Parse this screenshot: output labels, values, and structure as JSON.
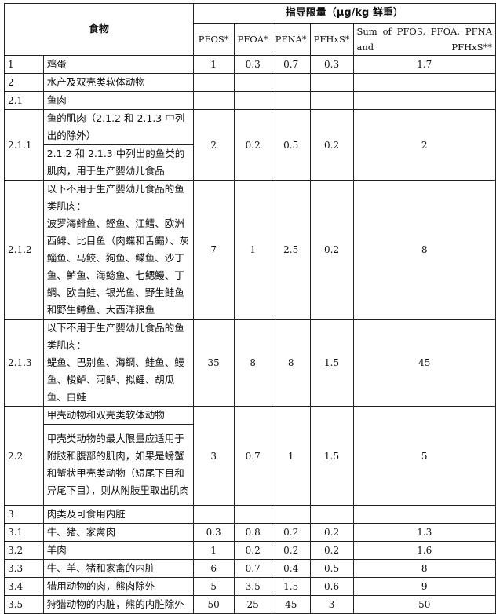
{
  "header": {
    "food": "食物",
    "limit_title": "指导限量（μg/kg 鲜重）",
    "columns": [
      "PFOS*",
      "PFOA*",
      "PFNA*",
      "PFHxS*",
      "Sum of PFOS, PFOA, PFNA and PFHxS**"
    ]
  },
  "rows": [
    {
      "id": "1",
      "food": "鸡蛋",
      "values": [
        "1",
        "0.3",
        "0.7",
        "0.3",
        "1.7"
      ]
    },
    {
      "id": "2",
      "food": "水产及双壳类软体动物",
      "values": [
        "",
        "",
        "",
        "",
        ""
      ]
    },
    {
      "id": "2.1",
      "food": "鱼肉",
      "values": [
        "",
        "",
        "",
        "",
        ""
      ]
    },
    {
      "id": "2.1.1",
      "food": "鱼的肌肉（2.1.2 和 2.1.3 中列出的除外）",
      "food2": "2.1.2 和 2.1.3 中列出的鱼类的肌肉，用于生产婴幼儿食品",
      "values": [
        "2",
        "0.2",
        "0.5",
        "0.2",
        "2"
      ]
    },
    {
      "id": "2.1.2",
      "food": "以下不用于生产婴幼儿食品的鱼类肌肉：",
      "food2": "波罗海鲱鱼、鲣鱼、江鳕、欧洲西鲱、比目鱼（肉蝶和舌鳎）、灰鲻鱼、马鲛、狗鱼、鲽鱼、沙丁鱼、鲈鱼、海鲶鱼、七鳃鳗、丁鲷、欧白鲑、银光鱼、野生鲑鱼和野生鳟鱼、大西洋狼鱼",
      "values": [
        "7",
        "1",
        "2.5",
        "0.2",
        "8"
      ]
    },
    {
      "id": "2.1.3",
      "food": "以下不用于生产婴幼儿食品的鱼类肌肉：",
      "food2": "鳀鱼、巴别鱼、海鲷、鲑鱼、鳗鱼、梭鲈、河鲈、拟鲤、胡瓜鱼、白鲑",
      "values": [
        "35",
        "8",
        "8",
        "1.5",
        "45"
      ]
    },
    {
      "id": "2.2",
      "food": "甲壳动物和双壳类软体动物",
      "food2": "甲壳类动物的最大限量应适用于附肢和腹部的肌肉，如果是螃蟹和蟹状甲壳类动物（短尾下目和异尾下目），则从附肢里取出肌肉",
      "values": [
        "3",
        "0.7",
        "1",
        "1.5",
        "5"
      ]
    },
    {
      "id": "3",
      "food": "肉类及可食用内脏",
      "values": [
        "",
        "",
        "",
        "",
        ""
      ]
    },
    {
      "id": "3.1",
      "food": "牛、猪、家禽肉",
      "values": [
        "0.3",
        "0.8",
        "0.2",
        "0.2",
        "1.3"
      ]
    },
    {
      "id": "3.2",
      "food": "羊肉",
      "values": [
        "1",
        "0.2",
        "0.2",
        "0.2",
        "1.6"
      ]
    },
    {
      "id": "3.3",
      "food": "牛、羊、猪和家禽的内脏",
      "values": [
        "6",
        "0.7",
        "0.4",
        "0.5",
        "8"
      ]
    },
    {
      "id": "3.4",
      "food": "猎用动物的肉，熊肉除外",
      "values": [
        "5",
        "3.5",
        "1.5",
        "0.6",
        "9"
      ]
    },
    {
      "id": "3.5",
      "food": "狩猎动物的内脏，熊的内脏除外",
      "values": [
        "50",
        "25",
        "45",
        "3",
        "50"
      ]
    }
  ]
}
